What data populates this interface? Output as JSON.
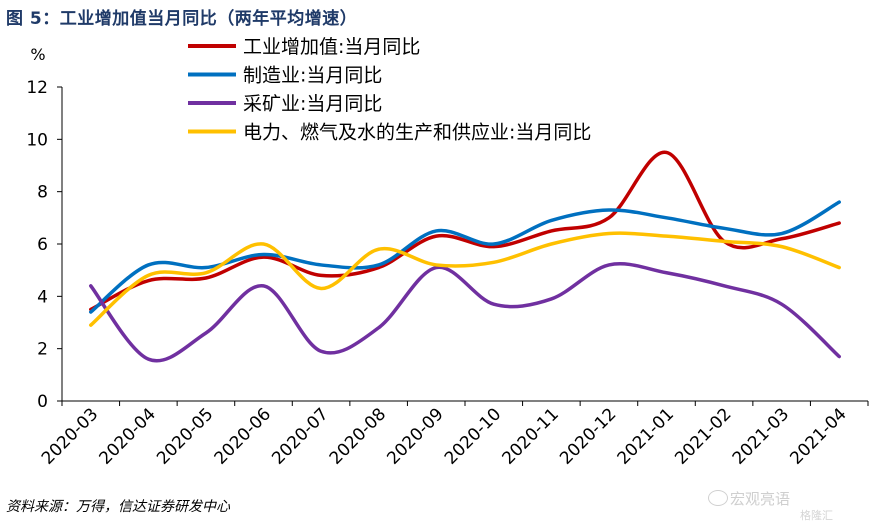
{
  "figure_title": "图 5：工业增加值当月同比（两年平均增速）",
  "source_note": "资料来源：万得，信达证券研发中心",
  "watermark": {
    "text": "宏观亮语",
    "sub": "格隆汇"
  },
  "chart_data": {
    "type": "line",
    "ylabel": "%",
    "ylim": [
      0,
      12
    ],
    "yticks": [
      0,
      2,
      4,
      6,
      8,
      10,
      12
    ],
    "grid": false,
    "legend_position": "top-center",
    "categories": [
      "2020-03",
      "2020-04",
      "2020-05",
      "2020-06",
      "2020-07",
      "2020-08",
      "2020-09",
      "2020-10",
      "2020-11",
      "2020-12",
      "2021-01",
      "2021-02",
      "2021-03",
      "2021-04"
    ],
    "series": [
      {
        "name": "工业增加值:当月同比",
        "color": "#c00000",
        "values": [
          3.5,
          4.6,
          4.7,
          5.5,
          4.8,
          5.1,
          6.3,
          5.9,
          6.5,
          7.0,
          9.5,
          6.1,
          6.2,
          6.8
        ]
      },
      {
        "name": "制造业:当月同比",
        "color": "#0070c0",
        "values": [
          3.4,
          5.2,
          5.1,
          5.6,
          5.2,
          5.2,
          6.5,
          6.0,
          6.9,
          7.3,
          7.0,
          6.6,
          6.4,
          7.6
        ]
      },
      {
        "name": "采矿业:当月同比",
        "color": "#7030a0",
        "values": [
          4.4,
          1.6,
          2.6,
          4.4,
          1.9,
          2.8,
          5.1,
          3.7,
          3.9,
          5.2,
          4.9,
          4.4,
          3.7,
          1.7
        ]
      },
      {
        "name": "电力、燃气及水的生产和供应业:当月同比",
        "color": "#ffc000",
        "values": [
          2.9,
          4.8,
          4.9,
          6.0,
          4.3,
          5.8,
          5.2,
          5.3,
          6.0,
          6.4,
          6.3,
          6.1,
          5.9,
          5.1
        ]
      }
    ]
  }
}
